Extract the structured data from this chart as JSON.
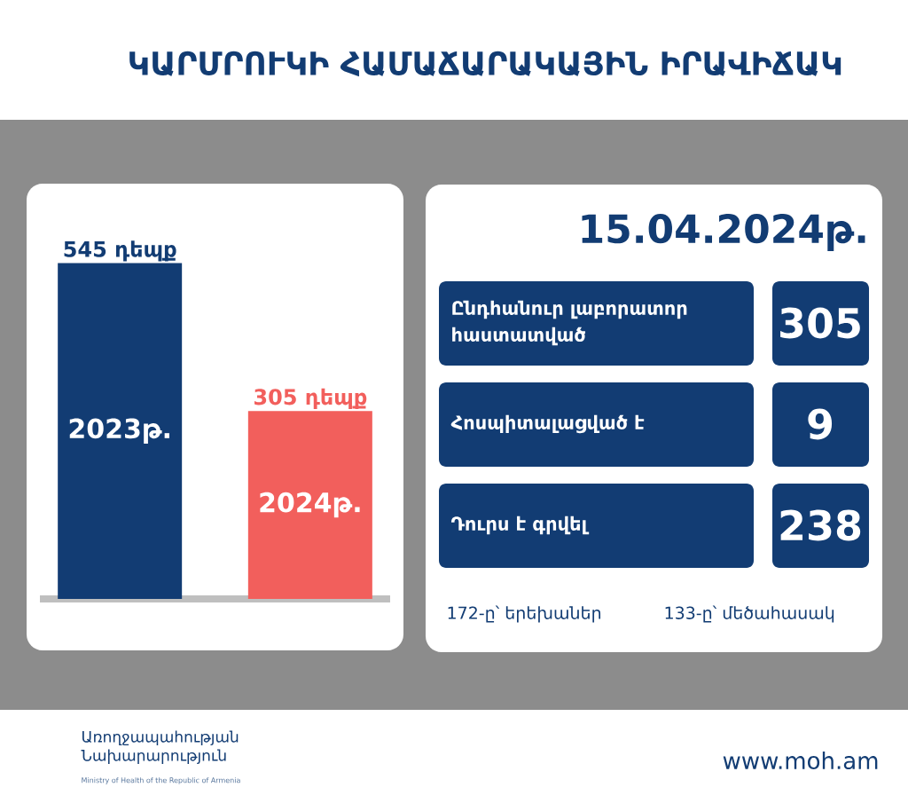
{
  "chart_data": [
    {
      "type": "bar",
      "title": "ԿԱՐՄՐՈՒԿԻ ՀԱՄԱՃԱՐԱԿԱՅԻՆ ԻՐԱՎԻՃԱԿ",
      "categories": [
        "2023թ.",
        "2024թ."
      ],
      "values": [
        545,
        305
      ],
      "colors": [
        "#123c73",
        "#f25f5c"
      ],
      "value_labels": [
        "545 դեպք",
        "305 դեպք"
      ],
      "annotations": [
        "Առողջապահության Նախարարություն",
        "Ministry of Health of the Republic of Armenia",
        "www.moh.am"
      ]
    },
    {
      "type": "other",
      "title": "15.04.2024թ.",
      "annotations": [
        "Ընդհանուր լաբորատոր հաստատված",
        "305",
        "Հոսպիտալացված է",
        "9",
        "Դուրս է գրվել",
        "238",
        "172-ը՝ երեխաներ",
        "133-ը՝ մեծահասակ"
      ]
    }
  ]
}
